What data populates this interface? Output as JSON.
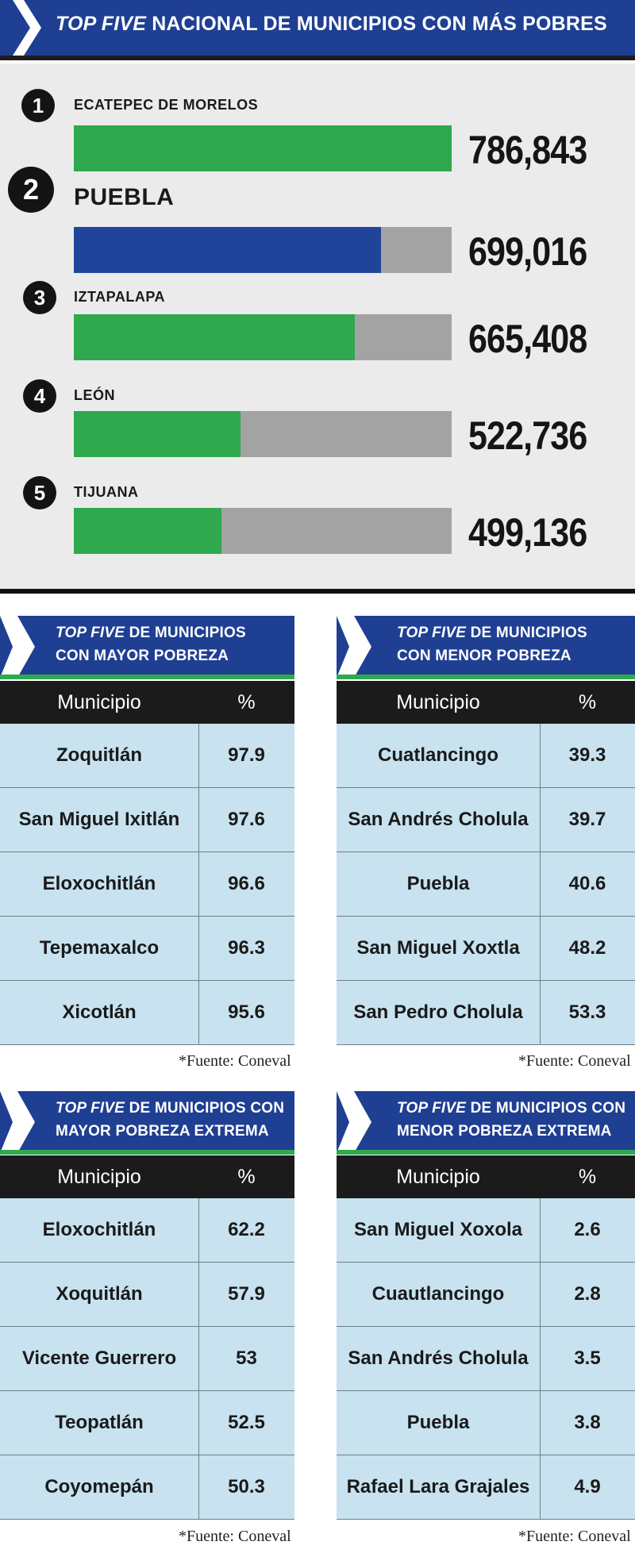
{
  "main": {
    "title_emph": "TOP FIVE",
    "title_rest": "NACIONAL DE MUNICIPIOS CON MÁS POBRES",
    "ranks": [
      {
        "rank": "1",
        "name": "ECATEPEC DE MORELOS",
        "value_label": "786,843",
        "value": 786843,
        "color": "#2fa84f"
      },
      {
        "rank": "2",
        "name": "PUEBLA",
        "value_label": "699,016",
        "value": 699016,
        "color": "#20449a"
      },
      {
        "rank": "3",
        "name": "IZTAPALAPA",
        "value_label": "665,408",
        "value": 665408,
        "color": "#2fa84f"
      },
      {
        "rank": "4",
        "name": "LEÓN",
        "value_label": "522,736",
        "value": 522736,
        "color": "#2fa84f"
      },
      {
        "rank": "5",
        "name": "TIJUANA",
        "value_label": "499,136",
        "value": 499136,
        "color": "#2fa84f"
      }
    ]
  },
  "chart_data": {
    "type": "bar",
    "title": "TOP FIVE NACIONAL DE MUNICIPIOS CON MÁS POBRES",
    "categories": [
      "ECATEPEC DE MORELOS",
      "PUEBLA",
      "IZTAPALAPA",
      "LEÓN",
      "TIJUANA"
    ],
    "values": [
      786843,
      699016,
      665408,
      522736,
      499136
    ],
    "xlabel": "",
    "ylabel": "",
    "ylim": [
      0,
      786843
    ]
  },
  "tables": {
    "col_municipio": "Municipio",
    "col_pct": "%",
    "source": "*Fuente: Coneval",
    "mayor": {
      "title_emph": "TOP FIVE",
      "title_l1_rest": "DE MUNICIPIOS",
      "title_l2": "CON MAYOR POBREZA",
      "rows": [
        {
          "name": "Zoquitlán",
          "pct": "97.9"
        },
        {
          "name": "San Miguel Ixitlán",
          "pct": "97.6"
        },
        {
          "name": "Eloxochitlán",
          "pct": "96.6"
        },
        {
          "name": "Tepemaxalco",
          "pct": "96.3"
        },
        {
          "name": "Xicotlán",
          "pct": "95.6"
        }
      ]
    },
    "menor": {
      "title_emph": "TOP FIVE",
      "title_l1_rest": "DE MUNICIPIOS",
      "title_l2": "CON MENOR POBREZA",
      "rows": [
        {
          "name": "Cuatlancingo",
          "pct": "39.3"
        },
        {
          "name": "San Andrés Cholula",
          "pct": "39.7"
        },
        {
          "name": "Puebla",
          "pct": "40.6"
        },
        {
          "name": "San Miguel Xoxtla",
          "pct": "48.2"
        },
        {
          "name": "San Pedro Cholula",
          "pct": "53.3"
        }
      ]
    },
    "mayor_extrema": {
      "title_emph": "TOP FIVE",
      "title_l1_rest": "DE MUNICIPIOS CON",
      "title_l2": "MAYOR POBREZA EXTREMA",
      "rows": [
        {
          "name": "Eloxochitlán",
          "pct": "62.2"
        },
        {
          "name": "Xoquitlán",
          "pct": "57.9"
        },
        {
          "name": "Vicente Guerrero",
          "pct": "53"
        },
        {
          "name": "Teopatlán",
          "pct": "52.5"
        },
        {
          "name": "Coyomepán",
          "pct": "50.3"
        }
      ]
    },
    "menor_extrema": {
      "title_emph": "TOP FIVE",
      "title_l1_rest": "DE MUNICIPIOS CON",
      "title_l2": "MENOR POBREZA EXTREMA",
      "rows": [
        {
          "name": "San Miguel Xoxola",
          "pct": "2.6"
        },
        {
          "name": "Cuautlancingo",
          "pct": "2.8"
        },
        {
          "name": "San Andrés Cholula",
          "pct": "3.5"
        },
        {
          "name": "Puebla",
          "pct": "3.8"
        },
        {
          "name": "Rafael Lara Grajales",
          "pct": "4.9"
        }
      ]
    }
  }
}
